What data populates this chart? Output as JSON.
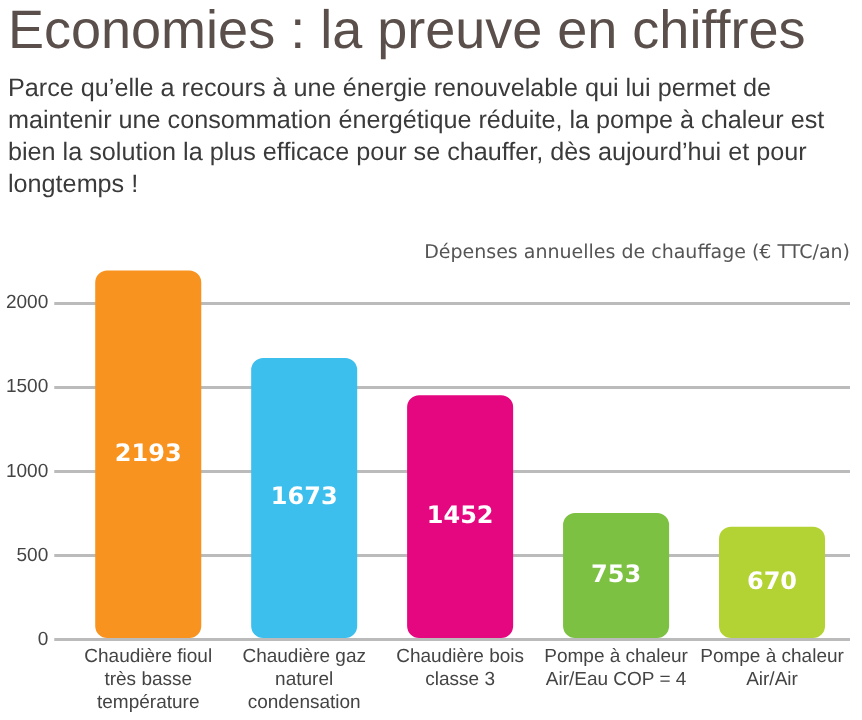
{
  "chart_data": {
    "type": "bar",
    "title": "Economies : la preuve en chiffres",
    "subtitle": "Parce qu’elle a recours à une énergie renouvelable qui lui permet de maintenir une consommation énergétique réduite, la pompe à chaleur est bien la solution la plus efficace pour se chauffer, dès aujourd’hui et pour longtemps !",
    "ylabel": "Dépenses annuelles de chauffage (€ TTC/an)",
    "categories": [
      "Chaudière fioul très basse température",
      "Chaudière gaz naturel condensation",
      "Chaudière bois classe 3",
      "Pompe à chaleur Air/Eau COP = 4",
      "Pompe à chaleur Air/Air"
    ],
    "values": [
      2193,
      1673,
      1452,
      753,
      670
    ],
    "colors": [
      "#f7931e",
      "#3dbfee",
      "#e5077f",
      "#7cc142",
      "#b3d335"
    ],
    "ylim": [
      0,
      2200
    ],
    "yticks": [
      0,
      500,
      1000,
      1500,
      2000
    ],
    "grid": "y",
    "data_labels": true
  }
}
